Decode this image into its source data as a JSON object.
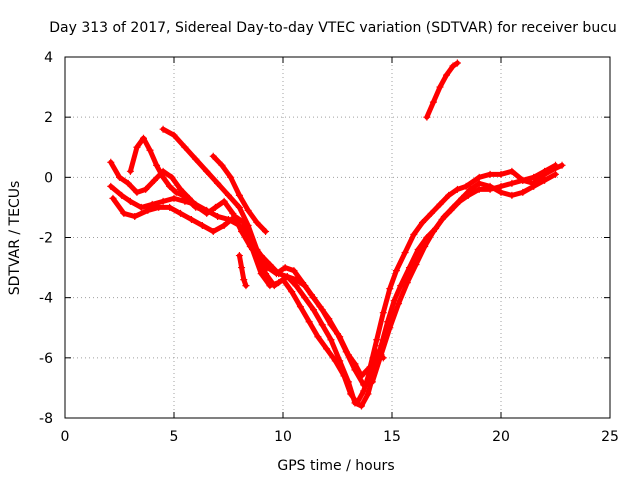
{
  "chart_data": {
    "type": "scatter",
    "title": "Day 313 of 2017, Sidereal Day-to-day VTEC variation (SDTVAR) for receiver bucu",
    "xlabel": "GPS time / hours",
    "ylabel": "SDTVAR / TECUs",
    "xlim": [
      0,
      25
    ],
    "ylim": [
      -8,
      4
    ],
    "xticks": [
      "0",
      "5",
      "10",
      "15",
      "20",
      "25"
    ],
    "yticks": [
      "-8",
      "-6",
      "-4",
      "-2",
      "0",
      "2",
      "4"
    ],
    "grid": true,
    "marker": "plus",
    "color": "#ff0000",
    "series": [
      {
        "x": [
          2.1,
          2.6,
          3.0,
          3.5,
          4.0,
          4.5,
          5.0,
          5.5,
          6.0,
          6.5,
          7.0,
          7.5,
          8.0,
          8.3,
          8.6,
          9.0,
          9.4,
          9.8,
          10.2,
          10.6,
          11.0,
          11.4,
          11.8,
          12.2,
          12.6,
          13.0,
          13.3,
          13.6,
          14.0,
          14.3,
          14.6,
          14.9,
          15.2,
          15.6,
          16.0,
          16.4,
          16.8,
          17.2,
          17.6,
          18.0,
          18.4,
          19.0,
          19.5,
          20.0,
          20.5,
          21.0,
          21.5,
          22.0,
          22.5,
          22.8
        ],
        "y": [
          -0.3,
          -0.6,
          -0.8,
          -1.0,
          -0.9,
          -0.8,
          -0.7,
          -0.8,
          -0.9,
          -1.1,
          -1.3,
          -1.4,
          -1.6,
          -1.8,
          -2.2,
          -2.6,
          -2.9,
          -3.2,
          -3.3,
          -3.4,
          -3.6,
          -4.0,
          -4.4,
          -4.9,
          -5.3,
          -5.9,
          -6.2,
          -6.6,
          -6.3,
          -5.4,
          -4.5,
          -3.7,
          -3.1,
          -2.5,
          -1.9,
          -1.5,
          -1.2,
          -0.9,
          -0.6,
          -0.4,
          -0.3,
          0.0,
          0.1,
          0.1,
          0.2,
          -0.1,
          -0.2,
          0.1,
          0.3,
          0.4
        ]
      },
      {
        "x": [
          2.2,
          2.7,
          3.2,
          3.8,
          4.3,
          4.8,
          5.3,
          5.8,
          6.3,
          6.8,
          7.3,
          7.8,
          8.2,
          8.6,
          9.0,
          9.4,
          9.8,
          10.2,
          10.6,
          11.0,
          11.4,
          11.8,
          12.2,
          12.6,
          13.0,
          13.3,
          13.6,
          13.9,
          14.2,
          14.5,
          14.8,
          15.1,
          15.4,
          15.8,
          16.2,
          16.6,
          17.0,
          17.4,
          17.8,
          18.2,
          18.6,
          19.0,
          19.5,
          20.0,
          20.5,
          21.0,
          21.5,
          22.0,
          22.5
        ],
        "y": [
          -0.7,
          -1.2,
          -1.3,
          -1.1,
          -1.0,
          -1.0,
          -1.2,
          -1.4,
          -1.6,
          -1.8,
          -1.6,
          -1.3,
          -1.5,
          -2.4,
          -3.2,
          -3.6,
          -3.5,
          -3.3,
          -3.6,
          -4.0,
          -4.4,
          -4.9,
          -5.4,
          -6.1,
          -6.8,
          -7.5,
          -7.6,
          -7.2,
          -6.4,
          -5.6,
          -4.8,
          -4.1,
          -3.6,
          -3.0,
          -2.4,
          -2.0,
          -1.7,
          -1.3,
          -1.0,
          -0.7,
          -0.4,
          -0.2,
          -0.3,
          -0.5,
          -0.6,
          -0.5,
          -0.3,
          -0.1,
          0.1
        ]
      },
      {
        "x": [
          4.5,
          5.0,
          5.5,
          6.0,
          6.5,
          7.0,
          7.5,
          8.0,
          8.4,
          8.8,
          9.2,
          9.6,
          10.0,
          10.4,
          10.8,
          11.2,
          11.6,
          12.0,
          12.4,
          12.8,
          13.1,
          13.4,
          13.7,
          14.0,
          14.3,
          14.6
        ],
        "y": [
          1.6,
          1.4,
          1.0,
          0.6,
          0.2,
          -0.2,
          -0.6,
          -1.0,
          -1.6,
          -2.4,
          -3.2,
          -3.6,
          -3.4,
          -3.8,
          -4.3,
          -4.8,
          -5.3,
          -5.7,
          -6.1,
          -6.6,
          -7.2,
          -7.5,
          -7.1,
          -6.4,
          -5.8,
          -6.0
        ]
      },
      {
        "x": [
          2.1,
          2.5,
          2.9,
          3.3,
          3.7,
          4.1,
          4.5,
          4.9,
          5.3,
          5.7,
          6.1,
          6.5,
          6.9,
          7.3,
          7.7,
          8.1,
          8.5,
          8.9,
          9.3,
          9.7,
          10.1,
          10.5,
          10.9,
          11.3,
          11.7,
          12.1,
          12.5,
          12.9,
          13.3,
          13.7,
          14.1,
          14.5,
          14.9,
          15.3,
          15.7,
          16.1,
          16.5,
          16.9,
          17.3,
          17.7,
          18.1,
          18.5,
          19.0,
          19.5,
          20.0,
          20.5,
          21.0,
          21.5,
          22.0,
          22.5
        ],
        "y": [
          0.5,
          0.0,
          -0.2,
          -0.5,
          -0.4,
          -0.1,
          0.2,
          0.0,
          -0.4,
          -0.7,
          -1.0,
          -1.2,
          -1.0,
          -0.8,
          -1.2,
          -1.8,
          -2.3,
          -2.7,
          -3.0,
          -3.2,
          -3.0,
          -3.1,
          -3.5,
          -3.9,
          -4.3,
          -4.7,
          -5.2,
          -5.8,
          -6.4,
          -6.9,
          -6.8,
          -5.9,
          -5.0,
          -4.2,
          -3.5,
          -2.9,
          -2.3,
          -1.8,
          -1.4,
          -1.1,
          -0.8,
          -0.6,
          -0.4,
          -0.4,
          -0.3,
          -0.2,
          -0.1,
          0.0,
          0.2,
          0.4
        ]
      },
      {
        "x": [
          3.0,
          3.3,
          3.6,
          3.9,
          4.2,
          4.5,
          4.8,
          5.1,
          5.4,
          5.7,
          6.0
        ],
        "y": [
          0.2,
          1.0,
          1.3,
          0.9,
          0.4,
          0.0,
          -0.3,
          -0.5,
          -0.6,
          -0.8,
          -1.0
        ]
      },
      {
        "x": [
          6.8,
          7.2,
          7.6,
          8.0,
          8.4,
          8.8,
          9.2
        ],
        "y": [
          0.7,
          0.4,
          0.0,
          -0.6,
          -1.1,
          -1.5,
          -1.8
        ]
      },
      {
        "x": [
          8.0,
          8.1,
          8.2,
          8.3
        ],
        "y": [
          -2.6,
          -3.0,
          -3.4,
          -3.6
        ]
      },
      {
        "x": [
          16.6,
          16.9,
          17.2,
          17.5,
          17.8,
          18.0
        ],
        "y": [
          2.0,
          2.5,
          3.0,
          3.4,
          3.7,
          3.8
        ]
      }
    ]
  }
}
